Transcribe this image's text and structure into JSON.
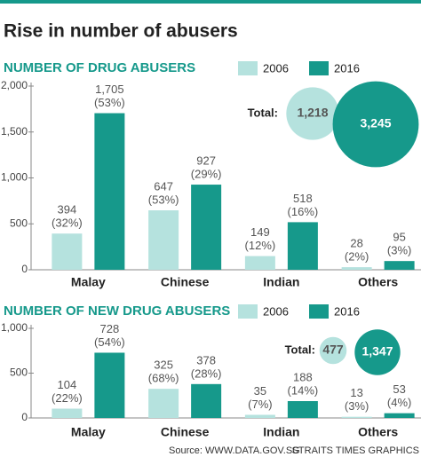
{
  "title": "Rise in number of abusers",
  "chart_data": [
    {
      "type": "bar",
      "title": "NUMBER OF DRUG ABUSERS",
      "categories": [
        "Malay",
        "Chinese",
        "Indian",
        "Others"
      ],
      "series": [
        {
          "name": "2006",
          "color": "#b5e2de",
          "values": [
            394,
            647,
            149,
            28
          ],
          "value_labels": [
            "394",
            "647",
            "149",
            "28"
          ],
          "shares": [
            32,
            53,
            12,
            2
          ],
          "share_labels": [
            "(32%)",
            "(53%)",
            "(12%)",
            "(2%)"
          ]
        },
        {
          "name": "2016",
          "color": "#16998b",
          "values": [
            1705,
            927,
            518,
            95
          ],
          "value_labels": [
            "1,705",
            "927",
            "518",
            "95"
          ],
          "shares": [
            53,
            29,
            16,
            3
          ],
          "share_labels": [
            "(53%)",
            "(29%)",
            "(16%)",
            "(3%)"
          ]
        }
      ],
      "ylim": [
        0,
        2000
      ],
      "yticks": [
        0,
        500,
        {
          "value": 1000,
          "label": "1,000"
        },
        {
          "value": 1500,
          "label": "1,500"
        },
        {
          "value": 2000,
          "label": "2,000"
        }
      ],
      "total_label": "Total:",
      "totals": [
        {
          "value": 1218,
          "label": "1,218"
        },
        {
          "value": 3245,
          "label": "3,245"
        }
      ]
    },
    {
      "type": "bar",
      "title": "NUMBER OF NEW DRUG ABUSERS",
      "categories": [
        "Malay",
        "Chinese",
        "Indian",
        "Others"
      ],
      "series": [
        {
          "name": "2006",
          "color": "#b5e2de",
          "values": [
            104,
            325,
            35,
            13
          ],
          "value_labels": [
            "104",
            "325",
            "35",
            "13"
          ],
          "shares": [
            22,
            68,
            7,
            3
          ],
          "share_labels": [
            "(22%)",
            "(68%)",
            "(7%)",
            "(3%)"
          ]
        },
        {
          "name": "2016",
          "color": "#16998b",
          "values": [
            728,
            378,
            188,
            53
          ],
          "value_labels": [
            "728",
            "378",
            "188",
            "53"
          ],
          "shares": [
            54,
            28,
            14,
            4
          ],
          "share_labels": [
            "(54%)",
            "(28%)",
            "(14%)",
            "(4%)"
          ]
        }
      ],
      "ylim": [
        0,
        1000
      ],
      "yticks": [
        0,
        500,
        {
          "value": 1000,
          "label": "1,000"
        }
      ],
      "total_label": "Total:",
      "totals": [
        {
          "value": 477,
          "label": "477"
        },
        {
          "value": 1347,
          "label": "1,347"
        }
      ]
    }
  ],
  "source": "Source: WWW.DATA.GOV.SG",
  "credit": "STRAITS TIMES GRAPHICS"
}
